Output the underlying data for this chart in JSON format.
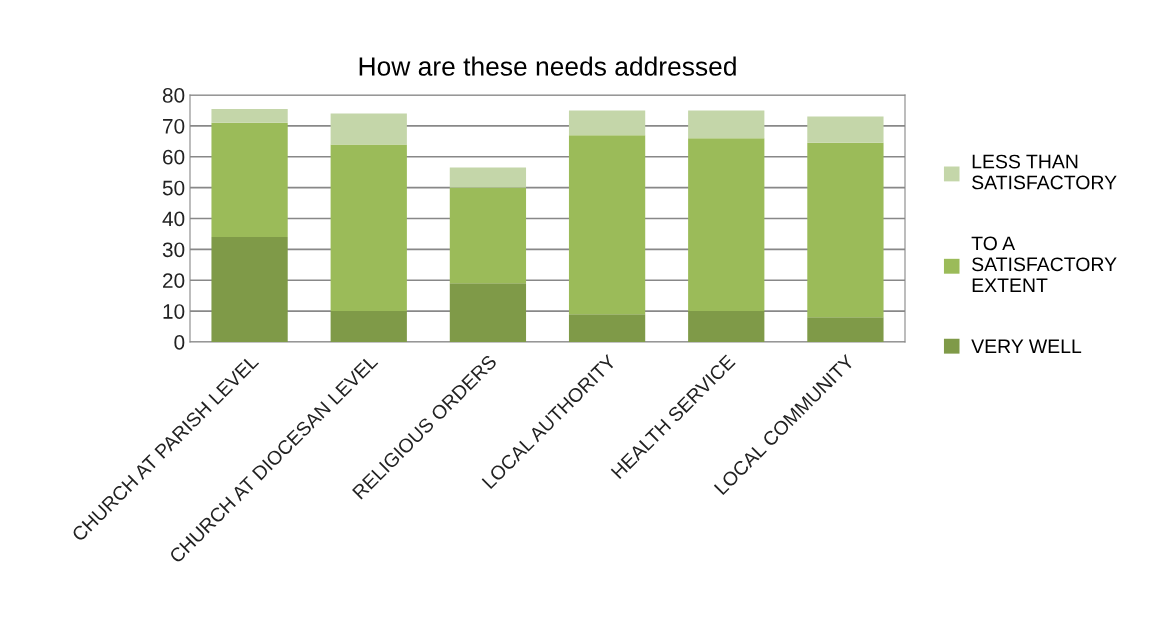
{
  "chart_data": {
    "type": "bar",
    "title": "How are these needs addressed",
    "stacked": true,
    "categories": [
      "CHURCH AT PARISH LEVEL",
      "CHURCH AT DIOCESAN LEVEL",
      "RELIGIOUS ORDERS",
      "LOCAL AUTHORITY",
      "HEALTH SERVICE",
      "LOCAL COMMUNITY"
    ],
    "series": [
      {
        "name": "VERY WELL",
        "color": "#7f9a48",
        "values": [
          34,
          10,
          19,
          9,
          10,
          8
        ]
      },
      {
        "name": "TO A SATISFACTORY EXTENT",
        "color": "#9bbb59",
        "values": [
          37,
          54,
          31,
          58,
          56,
          56.5
        ]
      },
      {
        "name": "LESS THAN SATISFACTORY",
        "color": "#c4d6a9",
        "values": [
          4.5,
          10,
          6.5,
          8,
          9,
          8.5
        ]
      }
    ],
    "ylim": [
      0,
      80
    ],
    "yticks": [
      0,
      10,
      20,
      30,
      40,
      50,
      60,
      70,
      80
    ],
    "grid": "y",
    "legend": "right"
  }
}
